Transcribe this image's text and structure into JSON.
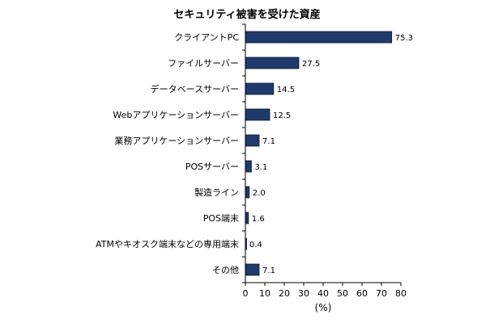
{
  "chart_data": {
    "type": "bar",
    "orientation": "horizontal",
    "title": "セキュリティ被害を受けた資産",
    "xlabel": "(%)",
    "ylabel": "",
    "categories": [
      "クライアントPC",
      "ファイルサーバー",
      "データベースサーバー",
      "Webアプリケーションサーバー",
      "業務アプリケーションサーバー",
      "POSサーバー",
      "製造ライン",
      "POS端末",
      "ATMやキオスク端末などの専用端末",
      "その他"
    ],
    "values": [
      75.3,
      27.5,
      14.5,
      12.5,
      7.1,
      3.1,
      2.0,
      1.6,
      0.4,
      7.1
    ],
    "value_labels": [
      "75.3",
      "27.5",
      "14.5",
      "12.5",
      "7.1",
      "3.1",
      "2.0",
      "1.6",
      "0.4",
      "7.1"
    ],
    "xlim": [
      0,
      80
    ],
    "xticks": [
      0,
      10,
      20,
      30,
      40,
      50,
      60,
      70,
      80
    ],
    "grid": false,
    "legend": "none",
    "bar_color": "#1f3a6b",
    "bar_edge_color": "#0b1a36"
  }
}
